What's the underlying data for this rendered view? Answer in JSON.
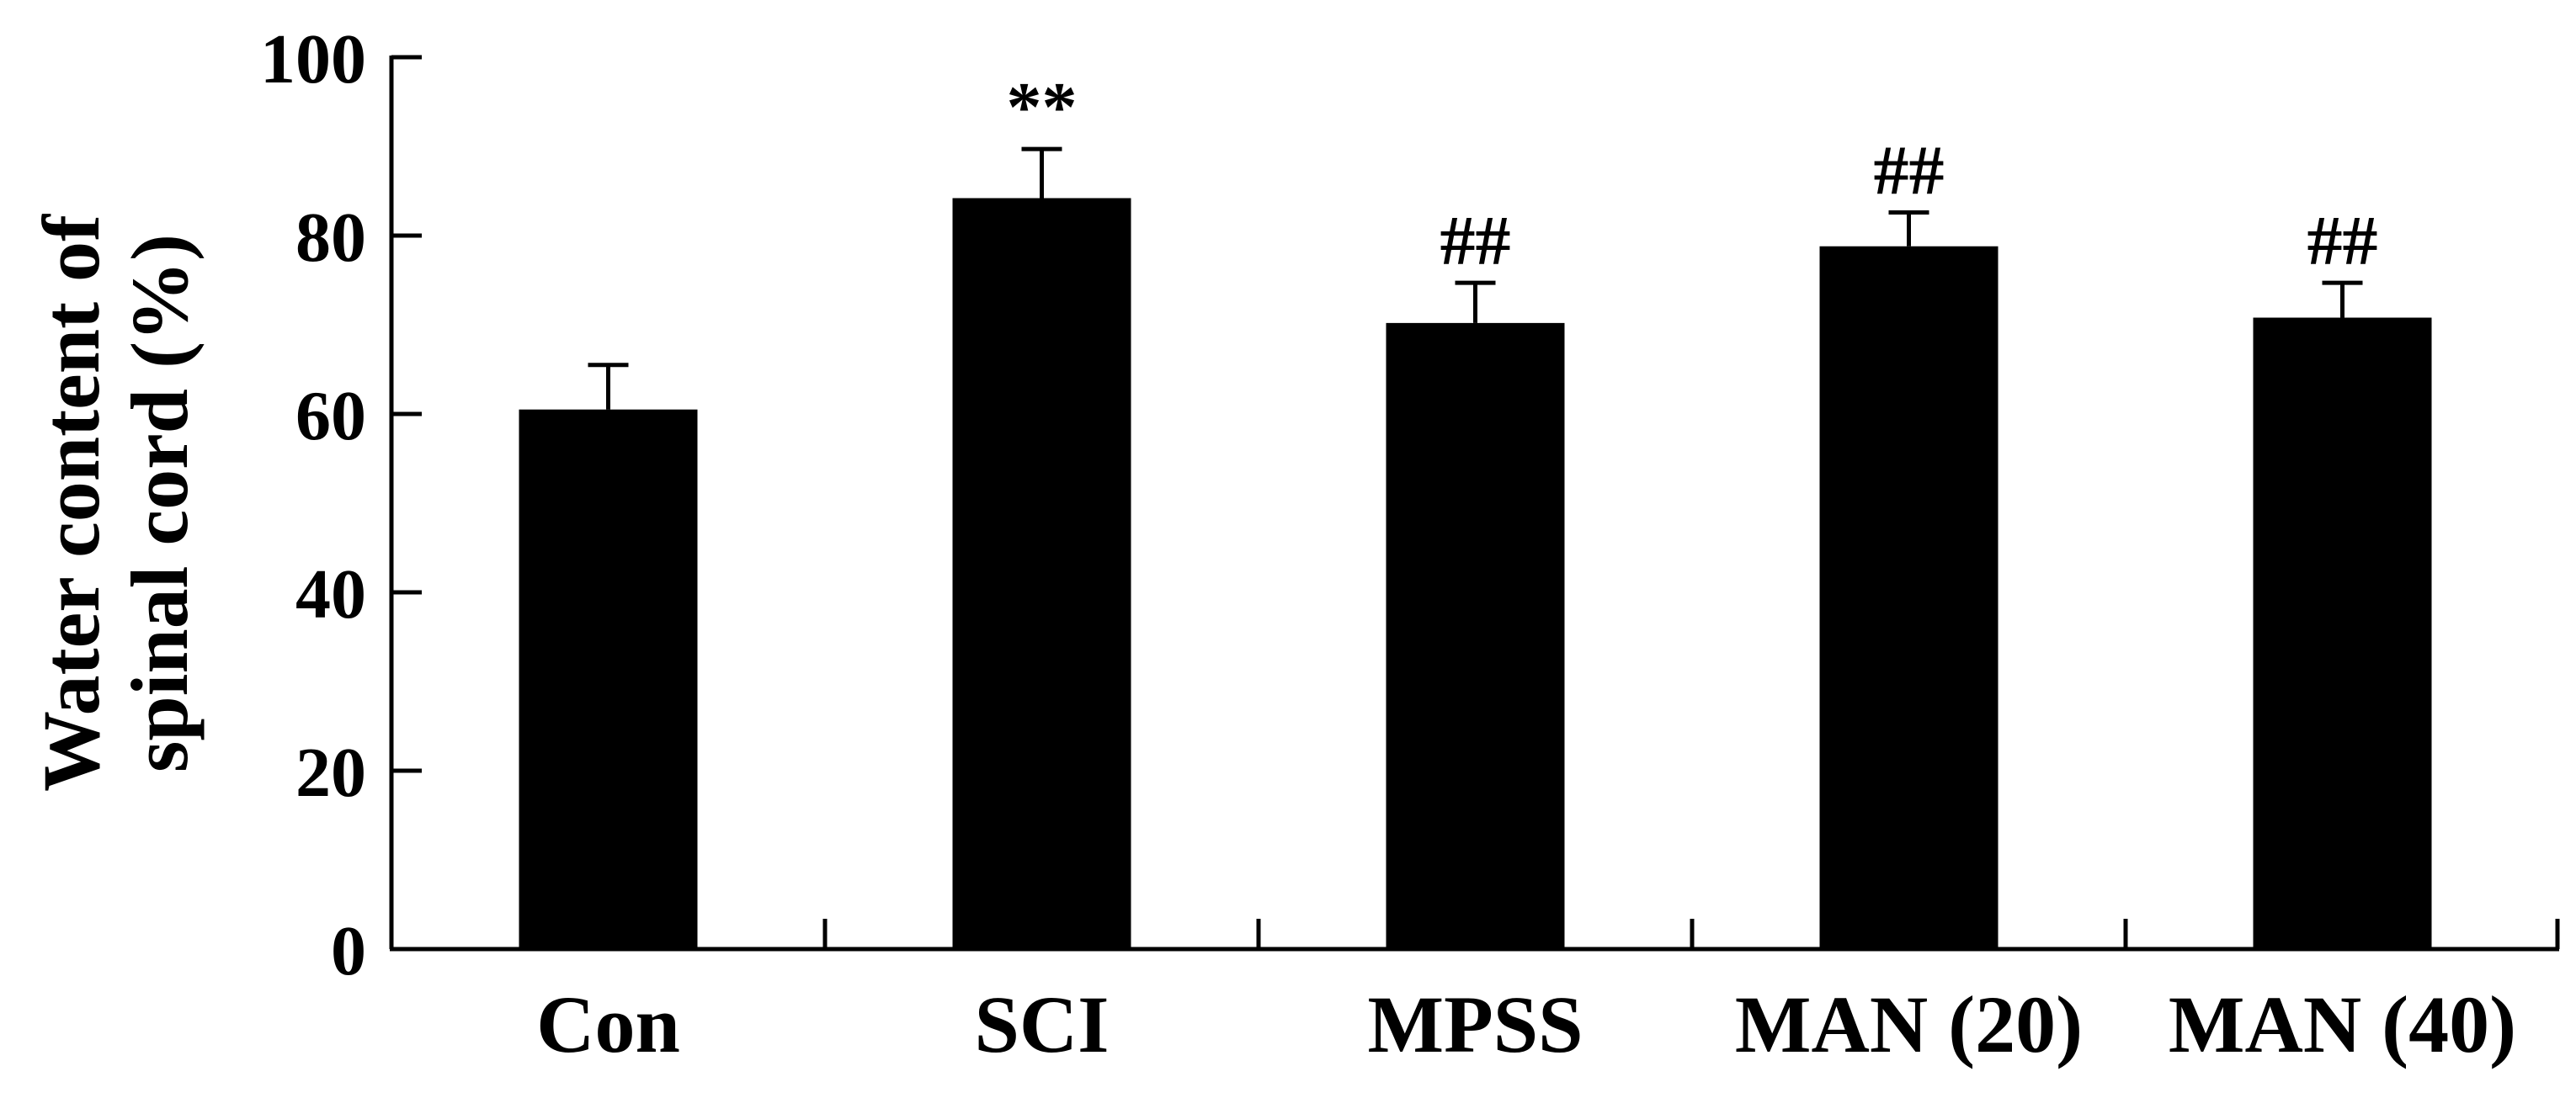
{
  "chart_data": {
    "type": "bar",
    "title": "",
    "xlabel": "",
    "ylabel": [
      "Water content of",
      "spinal cord (%)"
    ],
    "ylim": [
      0,
      100
    ],
    "yticks": [
      0,
      20,
      40,
      60,
      80,
      100
    ],
    "categories": [
      "Con",
      "SCI",
      "MPSS",
      "MAN (20)",
      "MAN (40)"
    ],
    "values": [
      60.5,
      84.2,
      70.2,
      78.8,
      70.8
    ],
    "error_upper": [
      5.0,
      5.5,
      4.5,
      3.8,
      3.9
    ],
    "significance": [
      "",
      "**",
      "##",
      "##",
      "##"
    ],
    "bar_color": "#000000",
    "grid": false,
    "legend": "none"
  }
}
